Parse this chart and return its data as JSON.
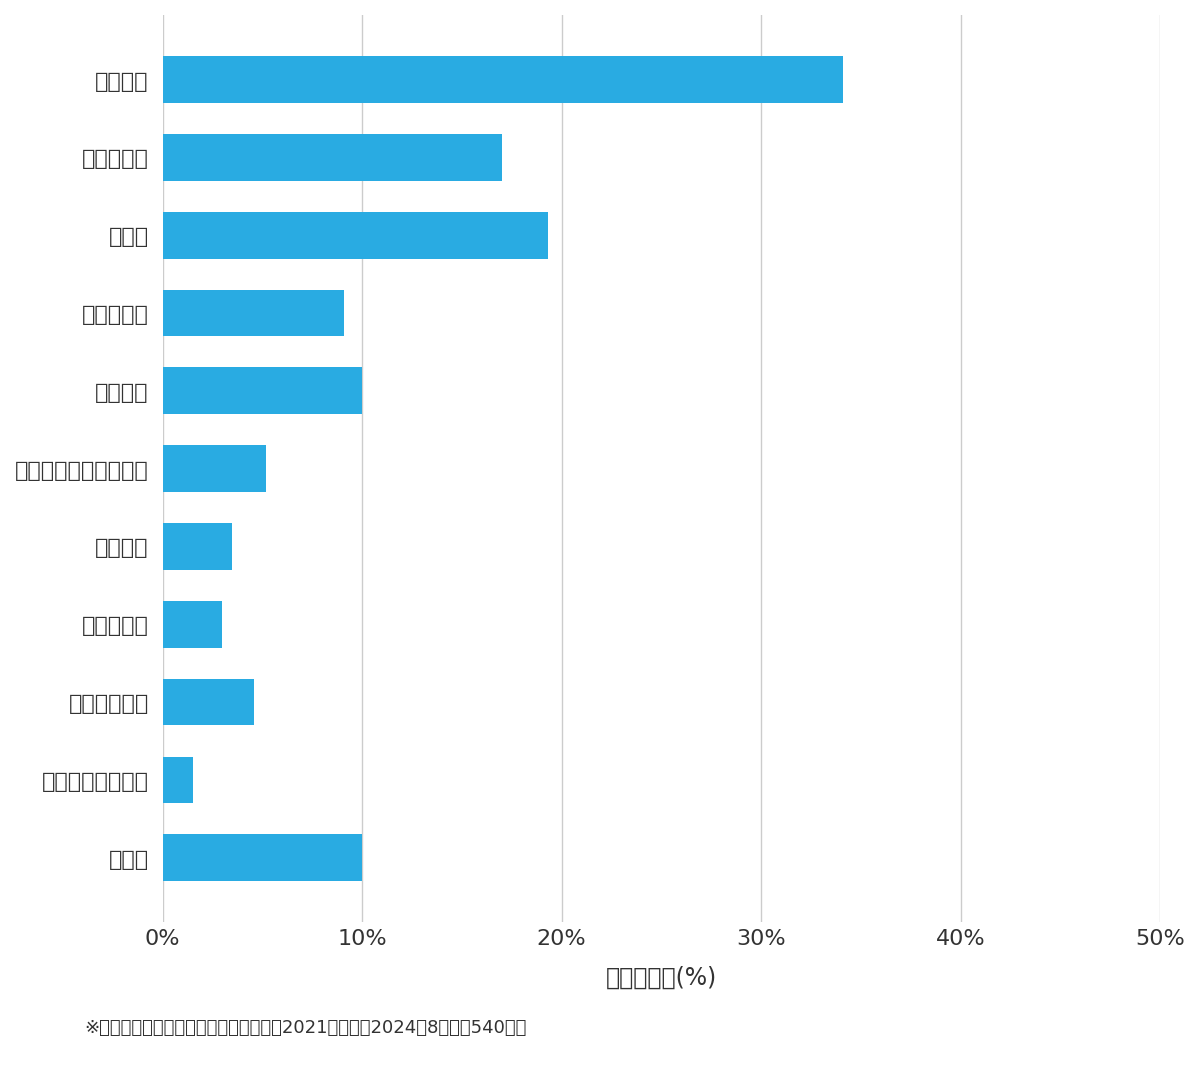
{
  "categories": [
    "玄関開錠",
    "玄関鍵交換",
    "車開錠",
    "その他開錠",
    "車鍵作成",
    "イモビ付国産車鍵作成",
    "金庫開錠",
    "玄関鍵作成",
    "その他鍵作成",
    "スーツケース開錠",
    "その他"
  ],
  "values": [
    34.1,
    17.0,
    19.3,
    9.1,
    10.0,
    5.2,
    3.5,
    3.0,
    4.6,
    1.5,
    10.0
  ],
  "bar_color": "#29ABE2",
  "background_color": "#ffffff",
  "xlabel": "件数の割合(%)",
  "xlim": [
    0,
    50
  ],
  "xticks": [
    0,
    10,
    20,
    30,
    40,
    50
  ],
  "xticklabels": [
    "0%",
    "10%",
    "20%",
    "30%",
    "40%",
    "50%"
  ],
  "footnote": "※弊社受付の案件を対象に集計（期間：2021年１月～2024年8月、計540件）",
  "grid_color": "#cccccc",
  "tick_color": "#333333",
  "label_fontsize": 16,
  "tick_fontsize": 16,
  "xlabel_fontsize": 17,
  "footnote_fontsize": 13
}
